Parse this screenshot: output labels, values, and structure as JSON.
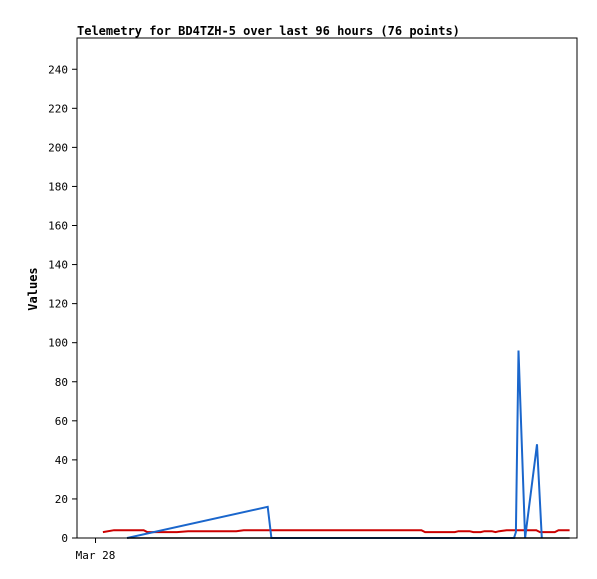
{
  "chart_data": {
    "type": "line",
    "title": "Telemetry for BD4TZH-5 over last 96 hours (76 points)",
    "xlabel": "",
    "ylabel": "Values",
    "x_ticks": [
      {
        "x": 0,
        "label": "Mar 28"
      }
    ],
    "xlim": [
      -0.5,
      13
    ],
    "ylim": [
      0,
      256
    ],
    "y_ticks": [
      0,
      20,
      40,
      60,
      80,
      100,
      120,
      140,
      160,
      180,
      200,
      220,
      240
    ],
    "grid": false,
    "series": [
      {
        "color": "#cc0000",
        "points": [
          [
            0.2,
            3
          ],
          [
            0.5,
            4
          ],
          [
            1.3,
            4
          ],
          [
            1.4,
            3
          ],
          [
            2.2,
            3
          ],
          [
            2.5,
            3.5
          ],
          [
            3.8,
            3.5
          ],
          [
            4.0,
            4
          ],
          [
            7.6,
            4
          ],
          [
            8.8,
            4
          ],
          [
            8.9,
            3
          ],
          [
            9.4,
            3
          ],
          [
            9.7,
            3
          ],
          [
            9.8,
            3.5
          ],
          [
            10.1,
            3.5
          ],
          [
            10.2,
            3
          ],
          [
            10.4,
            3
          ],
          [
            10.5,
            3.5
          ],
          [
            10.7,
            3.5
          ],
          [
            10.8,
            3
          ],
          [
            10.9,
            3.5
          ],
          [
            11.1,
            4
          ],
          [
            11.9,
            4
          ],
          [
            12.0,
            3
          ],
          [
            12.4,
            3
          ],
          [
            12.5,
            4
          ],
          [
            12.8,
            4
          ]
        ]
      },
      {
        "color": "#1a66cc",
        "points": [
          [
            0.85,
            0
          ],
          [
            4.65,
            16
          ],
          [
            4.75,
            0
          ],
          [
            11.3,
            0
          ],
          [
            11.35,
            3
          ],
          [
            11.42,
            96
          ],
          [
            11.6,
            0
          ],
          [
            11.92,
            48
          ],
          [
            12.05,
            0
          ]
        ]
      },
      {
        "color": "#000000",
        "points": [
          [
            0.85,
            0
          ],
          [
            12.8,
            0
          ]
        ]
      }
    ]
  }
}
